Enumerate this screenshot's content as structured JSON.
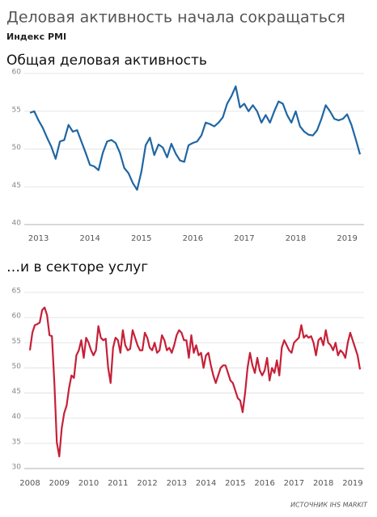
{
  "title": "Деловая активность начала сокращаться",
  "subtitle": "Индекс PMI",
  "source": "ИСТОЧНИК IHS MARKIT",
  "chart_data": [
    {
      "type": "line",
      "title": "Общая деловая активность",
      "color": "#1f66a3",
      "categories": [
        null,
        null,
        "2013",
        null,
        null,
        null,
        null,
        null,
        null,
        null,
        null,
        null,
        null,
        null,
        "2014",
        null,
        null,
        null,
        null,
        null,
        null,
        null,
        null,
        null,
        null,
        null,
        "2015",
        null,
        null,
        null,
        null,
        null,
        null,
        null,
        null,
        null,
        null,
        null,
        "2016",
        null,
        null,
        null,
        null,
        null,
        null,
        null,
        null,
        null,
        null,
        null,
        "2017",
        null,
        null,
        null,
        null,
        null,
        null,
        null,
        null,
        null,
        null,
        null,
        "2018",
        null,
        null,
        null,
        null,
        null,
        null,
        null,
        null,
        null,
        null,
        null,
        "2019",
        null,
        null,
        null
      ],
      "values": [
        54.8,
        55.0,
        53.8,
        52.8,
        51.5,
        50.3,
        48.7,
        51.0,
        51.2,
        53.2,
        52.3,
        52.5,
        51.0,
        49.5,
        47.9,
        47.7,
        47.2,
        49.5,
        51.0,
        51.2,
        50.8,
        49.5,
        47.5,
        46.8,
        45.5,
        44.6,
        47.0,
        50.5,
        51.5,
        49.2,
        50.6,
        50.2,
        48.9,
        50.7,
        49.4,
        48.5,
        48.3,
        50.5,
        50.8,
        51.0,
        51.8,
        53.5,
        53.3,
        53.0,
        53.5,
        54.2,
        56.0,
        57.0,
        58.3,
        55.5,
        56.0,
        55.0,
        55.8,
        55.0,
        53.5,
        54.5,
        53.5,
        55.0,
        56.3,
        56.0,
        54.5,
        53.5,
        55.0,
        53.0,
        52.3,
        51.9,
        51.8,
        52.5,
        54.0,
        55.8,
        55.0,
        54.0,
        53.8,
        54.0,
        54.6,
        53.2,
        51.3,
        49.3
      ],
      "ylim": [
        40,
        60
      ],
      "yticks": [
        40,
        45,
        50,
        55,
        60
      ],
      "grid": true
    },
    {
      "type": "line",
      "title": "…и в секторе услуг",
      "color": "#c62038",
      "categories": [
        "2008",
        null,
        null,
        null,
        null,
        null,
        null,
        null,
        null,
        null,
        null,
        null,
        "2009",
        null,
        null,
        null,
        null,
        null,
        null,
        null,
        null,
        null,
        null,
        null,
        "2010",
        null,
        null,
        null,
        null,
        null,
        null,
        null,
        null,
        null,
        null,
        null,
        "2011",
        null,
        null,
        null,
        null,
        null,
        null,
        null,
        null,
        null,
        null,
        null,
        "2012",
        null,
        null,
        null,
        null,
        null,
        null,
        null,
        null,
        null,
        null,
        null,
        "2013",
        null,
        null,
        null,
        null,
        null,
        null,
        null,
        null,
        null,
        null,
        null,
        "2014",
        null,
        null,
        null,
        null,
        null,
        null,
        null,
        null,
        null,
        null,
        null,
        "2015",
        null,
        null,
        null,
        null,
        null,
        null,
        null,
        null,
        null,
        null,
        null,
        "2016",
        null,
        null,
        null,
        null,
        null,
        null,
        null,
        null,
        null,
        null,
        null,
        "2017",
        null,
        null,
        null,
        null,
        null,
        null,
        null,
        null,
        null,
        null,
        null,
        "2018",
        null,
        null,
        null,
        null,
        null,
        null,
        null,
        null,
        null,
        null,
        null,
        "2019",
        null,
        null,
        null
      ],
      "values": [
        53.5,
        57.0,
        58.5,
        58.7,
        59.0,
        61.5,
        62.0,
        60.5,
        56.5,
        56.3,
        47.0,
        35.2,
        32.4,
        38.0,
        41.0,
        42.5,
        46.0,
        48.5,
        48.0,
        52.5,
        53.5,
        55.5,
        52.0,
        56.0,
        55.0,
        53.5,
        52.5,
        53.5,
        58.3,
        56.0,
        55.5,
        55.8,
        50.0,
        47.0,
        54.0,
        56.0,
        55.5,
        53.0,
        57.5,
        54.5,
        53.5,
        53.8,
        57.5,
        56.0,
        54.5,
        53.5,
        53.5,
        57.0,
        56.0,
        54.0,
        53.5,
        55.0,
        53.0,
        53.5,
        56.5,
        55.5,
        53.5,
        54.0,
        53.0,
        54.5,
        56.5,
        57.5,
        57.0,
        55.5,
        55.5,
        52.0,
        56.5,
        53.0,
        54.5,
        52.5,
        53.0,
        50.0,
        52.5,
        53.0,
        50.5,
        48.5,
        47.0,
        48.5,
        50.0,
        50.5,
        50.5,
        49.0,
        47.5,
        47.0,
        45.5,
        44.0,
        43.5,
        41.2,
        45.0,
        50.0,
        53.0,
        50.5,
        49.0,
        52.0,
        49.5,
        48.5,
        49.5,
        52.0,
        47.5,
        50.0,
        49.0,
        51.5,
        48.5,
        54.0,
        55.5,
        54.5,
        53.5,
        53.0,
        55.0,
        55.5,
        56.0,
        58.5,
        56.0,
        56.5,
        56.0,
        56.3,
        55.0,
        52.5,
        55.5,
        56.0,
        54.5,
        57.5,
        55.0,
        54.5,
        53.5,
        55.0,
        52.5,
        53.5,
        53.0,
        52.0,
        55.0,
        57.0,
        55.5,
        54.0,
        52.5,
        49.7
      ],
      "ylim": [
        30,
        65
      ],
      "yticks": [
        30,
        35,
        40,
        45,
        50,
        55,
        60,
        65
      ],
      "grid": true
    }
  ]
}
